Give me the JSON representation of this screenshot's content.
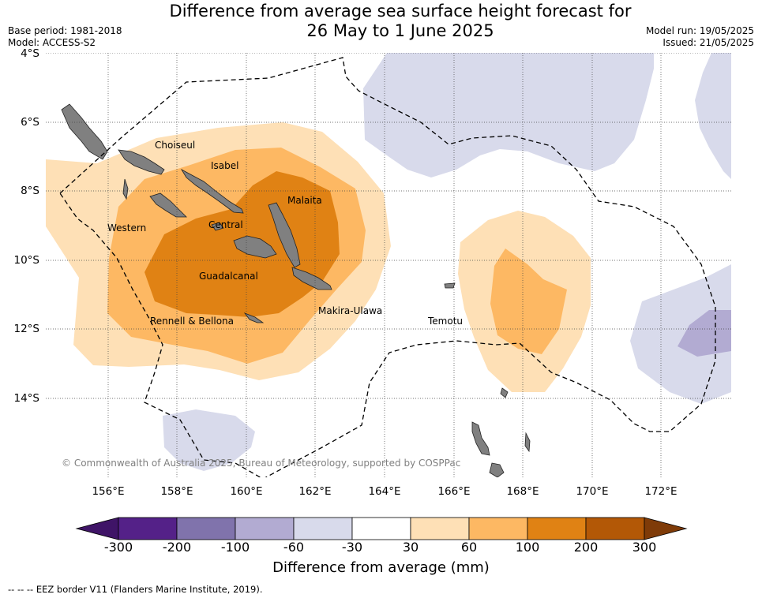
{
  "title_line1": "Difference from average sea surface height forecast for",
  "title_line2": "26 May to 1 June 2025",
  "base_period": "Base period: 1981-2018",
  "model": "Model: ACCESS-S2",
  "model_run": "Model run: 19/05/2025",
  "issued": "Issued: 21/05/2025",
  "lat_labels": [
    "4°S",
    "6°S",
    "8°S",
    "10°S",
    "12°S",
    "14°S"
  ],
  "lon_labels": [
    "156°E",
    "158°E",
    "160°E",
    "162°E",
    "164°E",
    "166°E",
    "168°E",
    "170°E",
    "172°E"
  ],
  "regions": {
    "choiseul": "Choiseul",
    "isabel": "Isabel",
    "malaita": "Malaita",
    "western": "Western",
    "central": "Central",
    "guadalcanal": "Guadalcanal",
    "makira": "Makira-Ulawa",
    "rennell": "Rennell & Bellona",
    "temotu": "Temotu"
  },
  "copyright": "© Commonwealth of Australia 2025, Bureau of Meteorology, supported by COSPPac",
  "colorbar": {
    "ticks": [
      "-300",
      "-200",
      "-100",
      "-60",
      "-30",
      "30",
      "60",
      "100",
      "200",
      "300"
    ],
    "colors": [
      "#3f1467",
      "#542188",
      "#8073ac",
      "#b2abd2",
      "#d8daeb",
      "#ffffff",
      "#fee0b6",
      "#fdb863",
      "#e08214",
      "#b35806",
      "#7f3b08"
    ],
    "label": "Difference from average (mm)"
  },
  "eez_note": "--  --  -- EEZ border V11 (Flanders Marine Institute, 2019).",
  "colors": {
    "land": "#808080",
    "gridline": "#444444",
    "eez": "#000000"
  }
}
